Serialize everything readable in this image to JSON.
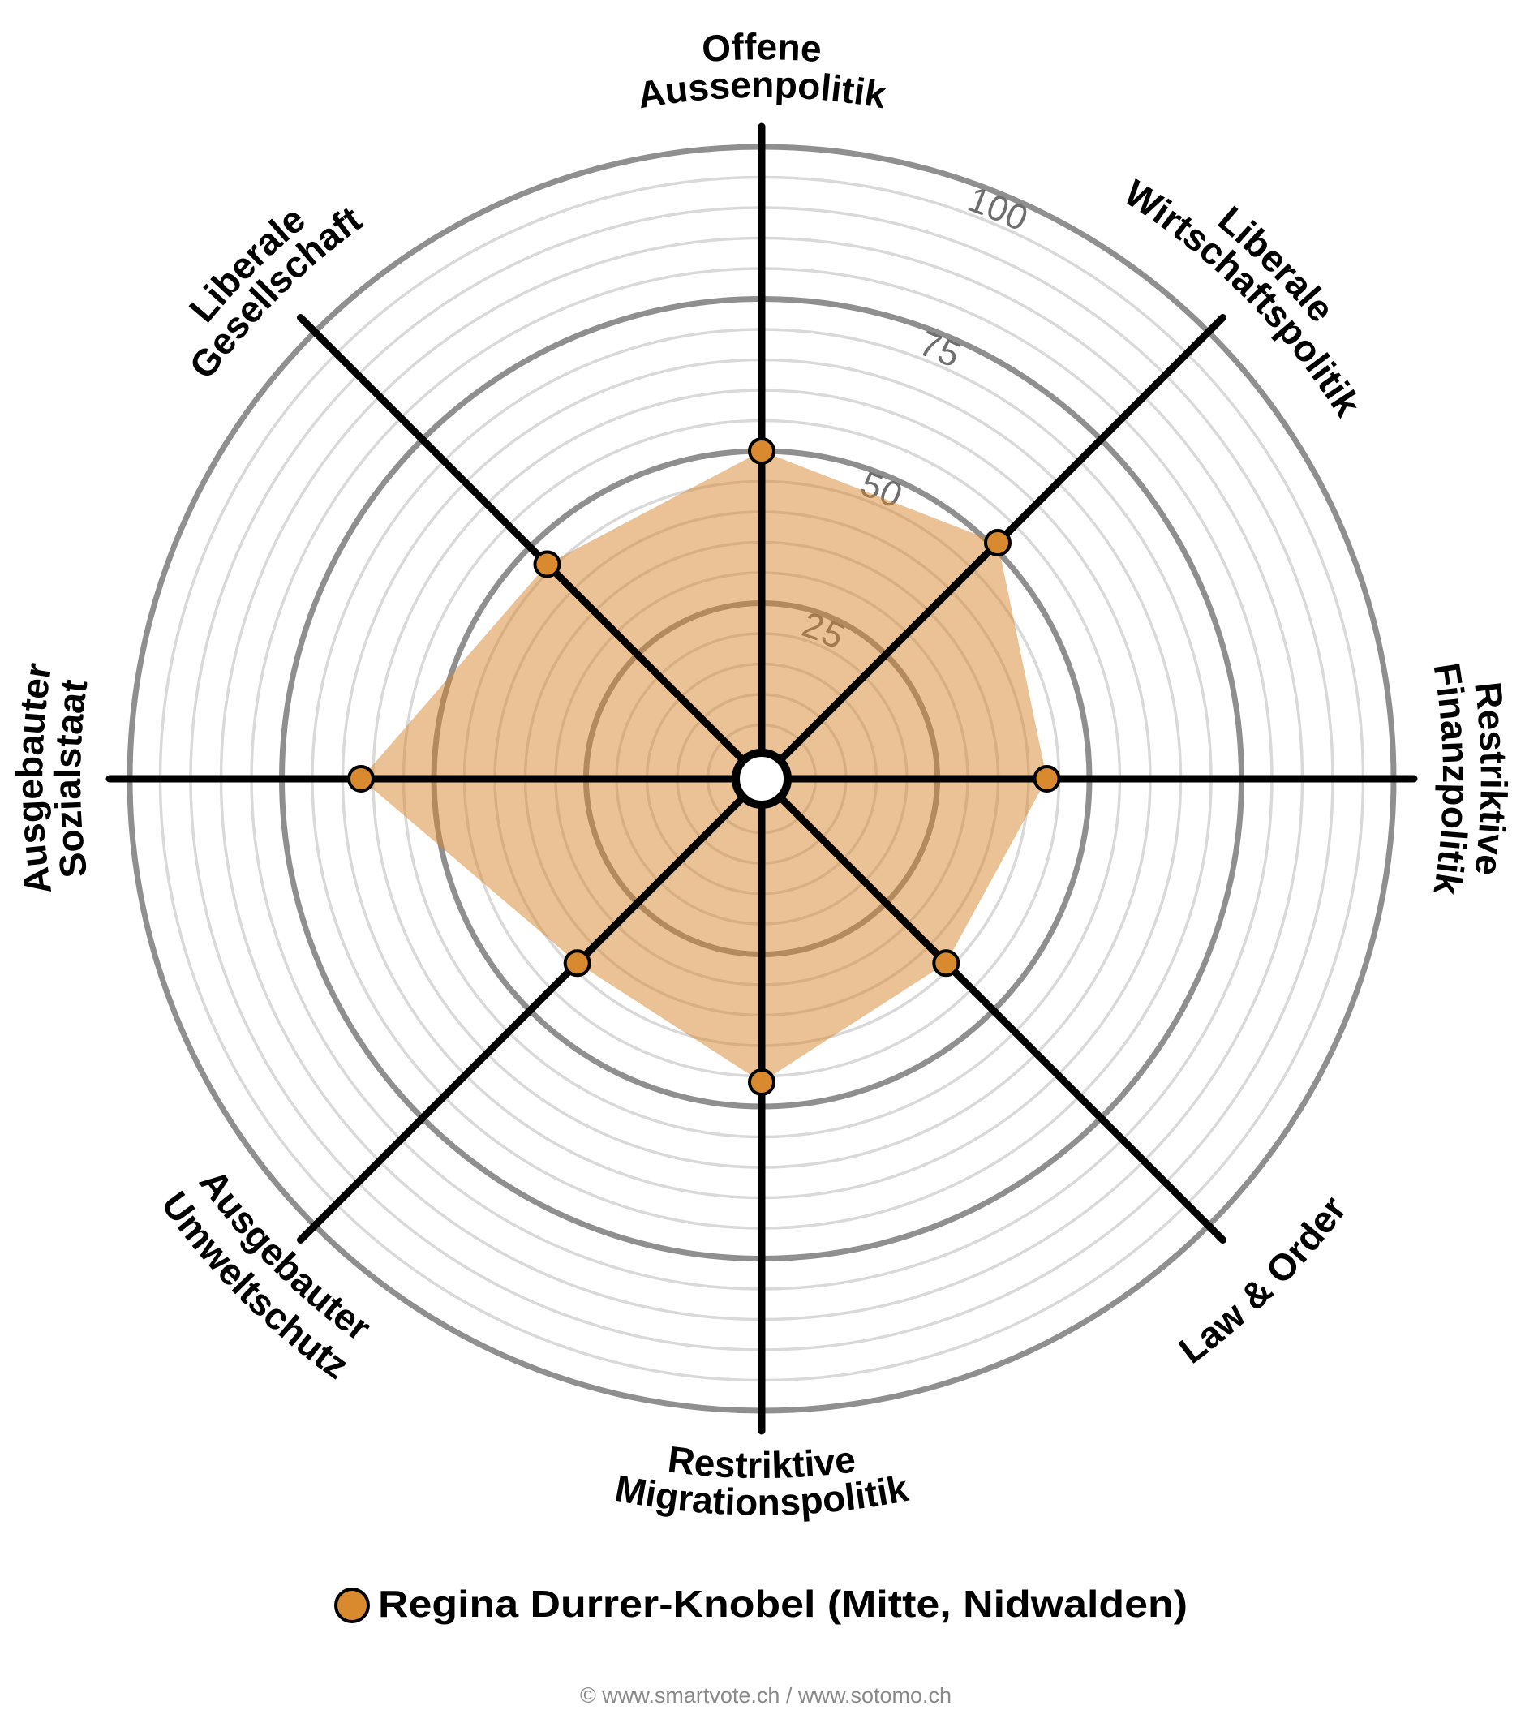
{
  "chart_data": {
    "type": "radar",
    "title": "",
    "scale": {
      "min": 0,
      "max": 100,
      "major_ticks": [
        25,
        50,
        75,
        100
      ],
      "minor_step": 5
    },
    "tick_labels": [
      "25",
      "50",
      "75",
      "100"
    ],
    "axes": [
      {
        "key": "offene_aussenpolitik",
        "angle": 0,
        "lines": [
          "Offene",
          "Aussenpolitik"
        ],
        "value": 50
      },
      {
        "key": "liberale_wirtschaftspolitik",
        "angle": 45,
        "lines": [
          "Liberale",
          "Wirtschaftspolitik"
        ],
        "value": 51
      },
      {
        "key": "restriktive_finanzpolitik",
        "angle": 90,
        "lines": [
          "Restriktive",
          "Finanzpolitik"
        ],
        "value": 43
      },
      {
        "key": "law_and_order",
        "angle": 135,
        "lines": [
          "Law & Order"
        ],
        "value": 39
      },
      {
        "key": "restriktive_migrationspolitik",
        "angle": 180,
        "lines": [
          "Restriktive",
          "Migrationspolitik"
        ],
        "value": 46
      },
      {
        "key": "ausgebauter_umweltschutz",
        "angle": 225,
        "lines": [
          "Ausgebauter",
          "Umweltschutz"
        ],
        "value": 39
      },
      {
        "key": "ausgebauter_sozialstaat",
        "angle": 270,
        "lines": [
          "Ausgebauter",
          "Sozialstaat"
        ],
        "value": 62
      },
      {
        "key": "liberale_gesellschaft",
        "angle": 315,
        "lines": [
          "Liberale",
          "Gesellschaft"
        ],
        "value": 46
      }
    ],
    "series": [
      {
        "name": "Regina Durrer-Knobel (Mitte, Nidwalden)",
        "categories": [
          "Offene Aussenpolitik",
          "Liberale Wirtschaftspolitik",
          "Restriktive Finanzpolitik",
          "Law & Order",
          "Restriktive Migrationspolitik",
          "Ausgebauter Umweltschutz",
          "Ausgebauter Sozialstaat",
          "Liberale Gesellschaft"
        ],
        "values": [
          50,
          51,
          43,
          39,
          46,
          39,
          62,
          46
        ],
        "color": "#d98a2e"
      }
    ],
    "legend": {
      "position": "bottom",
      "entries": [
        "Regina Durrer-Knobel (Mitte, Nidwalden)"
      ]
    },
    "grid": true
  },
  "colors": {
    "series": "#d98a2e",
    "fill": "#d6862b",
    "major_ring": "#8f8f8f",
    "minor_ring": "#d9d9d9",
    "axis": "#000000",
    "tick_text": "#6e6e6e"
  },
  "legend": {
    "label": "Regina Durrer-Knobel (Mitte, Nidwalden)"
  },
  "footer": {
    "text": "© www.smartvote.ch / www.sotomo.ch"
  }
}
